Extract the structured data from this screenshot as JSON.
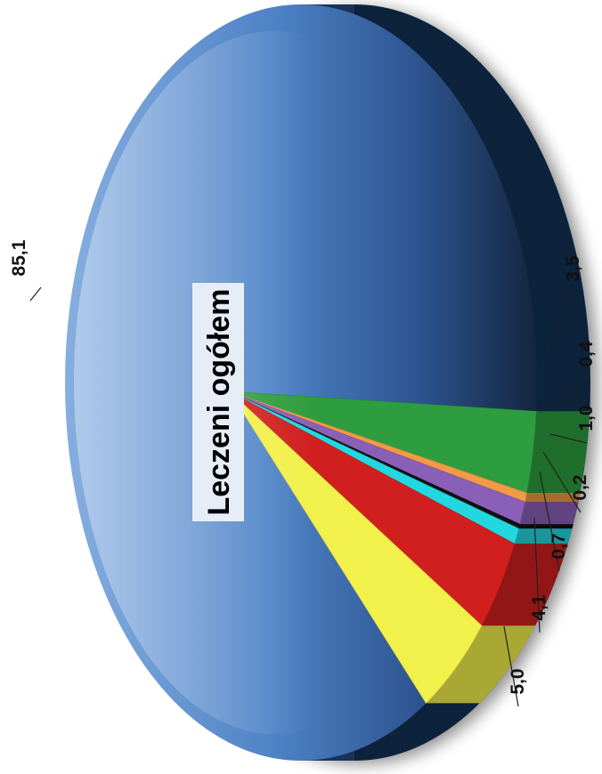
{
  "chart_data": {
    "type": "pie",
    "title": "Leczeni ogółem",
    "slices": [
      {
        "label": "85,1",
        "value": 85.1,
        "color": "#3f72b8"
      },
      {
        "label": "3,5",
        "value": 3.5,
        "color": "#2e9d3f"
      },
      {
        "label": "0,4",
        "value": 0.4,
        "color": "#f29a45"
      },
      {
        "label": "1,0",
        "value": 1.0,
        "color": "#8a5fb8"
      },
      {
        "label": "0,2",
        "value": 0.2,
        "color": "#111111"
      },
      {
        "label": "0,7",
        "value": 0.7,
        "color": "#22d8e0"
      },
      {
        "label": "4,1",
        "value": 4.1,
        "color": "#d11f1f"
      },
      {
        "label": "5,0",
        "value": 5.0,
        "color": "#f2f04a"
      }
    ]
  }
}
